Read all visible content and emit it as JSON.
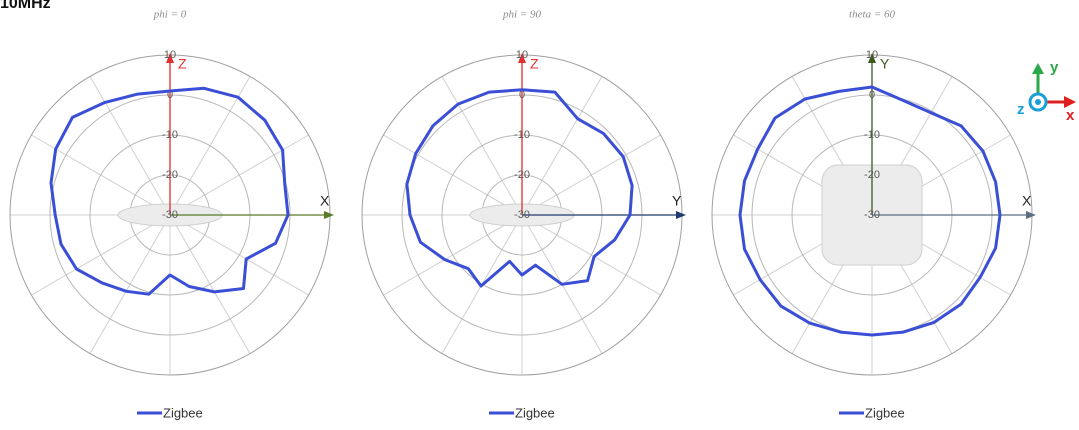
{
  "header": "10MHz",
  "icon": {
    "y": "y",
    "z": "z",
    "x": "x"
  },
  "chart_data": [
    {
      "type": "polar",
      "title": "phi = 0",
      "theta": [
        0,
        15,
        30,
        45,
        60,
        75,
        90,
        105,
        120,
        135,
        150,
        165,
        180,
        195,
        210,
        225,
        240,
        255,
        270,
        285,
        300,
        315,
        330,
        345
      ],
      "series": [
        {
          "name": "Zigbee",
          "color": "#3a4fd6",
          "values": [
            1,
            2.8,
            4,
            3.5,
            2.5,
            -0.3,
            -0.5,
            -2.7,
            -8,
            -4,
            -7.8,
            -11.5,
            -15,
            -9.5,
            -8,
            -6,
            -3,
            -1.8,
            -1.3,
            0.8,
            3,
            4.5,
            2.5,
            1.3
          ]
        }
      ],
      "rlim": [
        -30,
        10
      ],
      "rticks": [
        10,
        0,
        -10,
        -20,
        -30
      ],
      "axes": [
        {
          "label": "Z",
          "color": "#e03030",
          "direction": "up"
        },
        {
          "label": "X",
          "color": "#5a7a2a",
          "direction": "right"
        }
      ]
    },
    {
      "type": "polar",
      "title": "phi = 90",
      "theta": [
        0,
        15,
        30,
        45,
        60,
        75,
        90,
        105,
        120,
        135,
        150,
        165,
        180,
        195,
        210,
        225,
        240,
        255,
        270,
        285,
        300,
        315,
        330,
        345
      ],
      "series": [
        {
          "name": "Zigbee",
          "color": "#3a4fd6",
          "values": [
            1.3,
            1.8,
            -2.2,
            -1.2,
            -0.8,
            -1.5,
            -3,
            -6,
            -9.2,
            -6.8,
            -10,
            -17,
            -15,
            -18,
            -9.5,
            -11,
            -7.7,
            -3.7,
            -2,
            -0.2,
            0.7,
            1.5,
            2,
            1.8
          ]
        }
      ],
      "rlim": [
        -30,
        10
      ],
      "rticks": [
        10,
        0,
        -10,
        -20,
        -30
      ],
      "axes": [
        {
          "label": "Z",
          "color": "#e03030",
          "direction": "up"
        },
        {
          "label": "Y",
          "color": "#1f3a6e",
          "direction": "right"
        }
      ]
    },
    {
      "type": "polar",
      "title": "theta = 60",
      "theta": [
        0,
        15,
        30,
        45,
        60,
        75,
        90,
        105,
        120,
        135,
        150,
        165,
        180,
        195,
        210,
        225,
        240,
        255,
        270,
        285,
        300,
        315,
        330,
        345
      ],
      "series": [
        {
          "name": "Zigbee",
          "color": "#3a4fd6",
          "values": [
            2,
            -0.3,
            -0.5,
            1.5,
            2,
            2,
            2,
            2,
            1.2,
            1.5,
            1,
            0.3,
            0,
            0.3,
            1.2,
            2.2,
            2.3,
            3,
            3,
            3,
            3,
            4.3,
            3.5,
            2
          ]
        }
      ],
      "rlim": [
        -30,
        10
      ],
      "rticks": [
        10,
        0,
        -10,
        -20,
        -30
      ],
      "axes": [
        {
          "label": "Y",
          "color": "#3d5a1e",
          "direction": "up"
        },
        {
          "label": "X",
          "color": "#5a6e82",
          "direction": "right"
        }
      ]
    }
  ]
}
